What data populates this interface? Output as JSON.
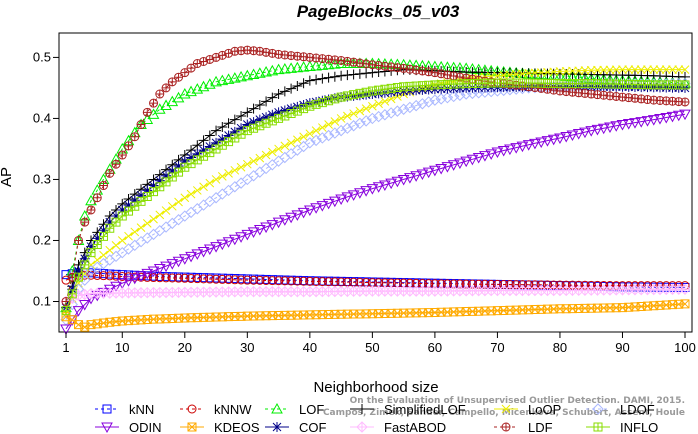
{
  "chart_data": {
    "type": "line",
    "title": "PageBlocks_05_v03",
    "xlabel": "Neighborhood size",
    "ylabel": "AP",
    "xlim": [
      1,
      100
    ],
    "ylim": [
      0.05,
      0.54
    ],
    "xticks": [
      1,
      10,
      20,
      30,
      40,
      50,
      60,
      70,
      80,
      90,
      100
    ],
    "yticks": [
      0.1,
      0.2,
      0.3,
      0.4,
      0.5
    ],
    "ytick_labels": [
      "0.1",
      "0.2",
      "0.3",
      "0.4",
      "0.5"
    ],
    "grid": false,
    "legend_position": "bottom",
    "series": [
      {
        "name": "kNN",
        "color": "#0000ff",
        "marker": "square",
        "dash": "dashed",
        "points": [
          [
            1,
            0.144
          ],
          [
            3,
            0.147
          ],
          [
            5,
            0.147
          ],
          [
            8,
            0.145
          ],
          [
            12,
            0.143
          ],
          [
            16,
            0.141
          ],
          [
            20,
            0.14
          ],
          [
            30,
            0.137
          ],
          [
            40,
            0.134
          ],
          [
            50,
            0.132
          ],
          [
            60,
            0.13
          ],
          [
            70,
            0.128
          ],
          [
            80,
            0.126
          ],
          [
            90,
            0.124
          ],
          [
            100,
            0.123
          ]
        ]
      },
      {
        "name": "kNNW",
        "color": "#cc0000",
        "marker": "circle",
        "dash": "dashed",
        "points": [
          [
            1,
            0.135
          ],
          [
            3,
            0.143
          ],
          [
            5,
            0.143
          ],
          [
            8,
            0.142
          ],
          [
            12,
            0.14
          ],
          [
            16,
            0.139
          ],
          [
            20,
            0.138
          ],
          [
            30,
            0.135
          ],
          [
            40,
            0.133
          ],
          [
            50,
            0.131
          ],
          [
            60,
            0.129
          ],
          [
            70,
            0.128
          ],
          [
            80,
            0.127
          ],
          [
            90,
            0.126
          ],
          [
            100,
            0.126
          ]
        ]
      },
      {
        "name": "LOF",
        "color": "#00ee00",
        "marker": "triangle",
        "dash": "dashed",
        "points": [
          [
            1,
            0.09
          ],
          [
            2,
            0.15
          ],
          [
            3,
            0.2
          ],
          [
            4,
            0.24
          ],
          [
            5,
            0.265
          ],
          [
            7,
            0.3
          ],
          [
            10,
            0.35
          ],
          [
            13,
            0.39
          ],
          [
            16,
            0.415
          ],
          [
            20,
            0.44
          ],
          [
            25,
            0.46
          ],
          [
            30,
            0.47
          ],
          [
            35,
            0.48
          ],
          [
            40,
            0.485
          ],
          [
            45,
            0.49
          ],
          [
            50,
            0.49
          ],
          [
            55,
            0.488
          ],
          [
            60,
            0.485
          ],
          [
            65,
            0.482
          ],
          [
            70,
            0.477
          ],
          [
            75,
            0.473
          ],
          [
            80,
            0.47
          ],
          [
            85,
            0.465
          ],
          [
            90,
            0.462
          ],
          [
            95,
            0.46
          ],
          [
            100,
            0.458
          ]
        ]
      },
      {
        "name": "SimplifiedLOF",
        "color": "#000000",
        "marker": "plus",
        "dash": "solid",
        "points": [
          [
            1,
            0.09
          ],
          [
            3,
            0.16
          ],
          [
            5,
            0.2
          ],
          [
            8,
            0.24
          ],
          [
            10,
            0.26
          ],
          [
            15,
            0.3
          ],
          [
            20,
            0.34
          ],
          [
            25,
            0.38
          ],
          [
            30,
            0.41
          ],
          [
            35,
            0.44
          ],
          [
            40,
            0.462
          ],
          [
            45,
            0.47
          ],
          [
            50,
            0.475
          ],
          [
            55,
            0.48
          ],
          [
            60,
            0.478
          ],
          [
            65,
            0.476
          ],
          [
            70,
            0.475
          ],
          [
            75,
            0.474
          ],
          [
            80,
            0.473
          ],
          [
            85,
            0.472
          ],
          [
            90,
            0.471
          ],
          [
            95,
            0.47
          ],
          [
            100,
            0.468
          ]
        ]
      },
      {
        "name": "LoOP",
        "color": "#eeee00",
        "marker": "x",
        "dash": "solid",
        "points": [
          [
            1,
            0.08
          ],
          [
            3,
            0.13
          ],
          [
            5,
            0.16
          ],
          [
            10,
            0.2
          ],
          [
            15,
            0.235
          ],
          [
            20,
            0.27
          ],
          [
            25,
            0.3
          ],
          [
            30,
            0.325
          ],
          [
            35,
            0.35
          ],
          [
            40,
            0.375
          ],
          [
            45,
            0.4
          ],
          [
            50,
            0.42
          ],
          [
            55,
            0.44
          ],
          [
            60,
            0.455
          ],
          [
            65,
            0.465
          ],
          [
            70,
            0.47
          ],
          [
            75,
            0.474
          ],
          [
            80,
            0.477
          ],
          [
            85,
            0.479
          ],
          [
            90,
            0.48
          ],
          [
            95,
            0.48
          ],
          [
            100,
            0.48
          ]
        ]
      },
      {
        "name": "LDOF",
        "color": "#aab8ff",
        "marker": "diamond",
        "dash": "dashed",
        "points": [
          [
            1,
            0.07
          ],
          [
            3,
            0.12
          ],
          [
            5,
            0.15
          ],
          [
            10,
            0.18
          ],
          [
            15,
            0.21
          ],
          [
            20,
            0.24
          ],
          [
            25,
            0.27
          ],
          [
            30,
            0.3
          ],
          [
            35,
            0.33
          ],
          [
            40,
            0.36
          ],
          [
            45,
            0.38
          ],
          [
            50,
            0.4
          ],
          [
            55,
            0.415
          ],
          [
            60,
            0.43
          ],
          [
            65,
            0.44
          ],
          [
            70,
            0.445
          ],
          [
            75,
            0.45
          ],
          [
            80,
            0.452
          ],
          [
            85,
            0.455
          ],
          [
            90,
            0.455
          ],
          [
            95,
            0.456
          ],
          [
            100,
            0.457
          ]
        ]
      },
      {
        "name": "ODIN",
        "color": "#8800dd",
        "marker": "triangle-down",
        "dash": "solid",
        "points": [
          [
            1,
            0.055
          ],
          [
            2,
            0.07
          ],
          [
            3,
            0.085
          ],
          [
            5,
            0.105
          ],
          [
            8,
            0.12
          ],
          [
            10,
            0.13
          ],
          [
            15,
            0.15
          ],
          [
            20,
            0.17
          ],
          [
            25,
            0.19
          ],
          [
            30,
            0.21
          ],
          [
            35,
            0.23
          ],
          [
            40,
            0.25
          ],
          [
            45,
            0.268
          ],
          [
            50,
            0.285
          ],
          [
            55,
            0.3
          ],
          [
            60,
            0.315
          ],
          [
            65,
            0.33
          ],
          [
            70,
            0.345
          ],
          [
            75,
            0.357
          ],
          [
            80,
            0.368
          ],
          [
            85,
            0.38
          ],
          [
            90,
            0.39
          ],
          [
            95,
            0.398
          ],
          [
            100,
            0.407
          ]
        ]
      },
      {
        "name": "KDEOS",
        "color": "#ffaa00",
        "marker": "square-x",
        "dash": "solid",
        "points": [
          [
            1,
            0.075
          ],
          [
            2,
            0.07
          ],
          [
            3,
            0.062
          ],
          [
            4,
            0.058
          ],
          [
            5,
            0.062
          ],
          [
            8,
            0.066
          ],
          [
            10,
            0.068
          ],
          [
            15,
            0.071
          ],
          [
            20,
            0.073
          ],
          [
            30,
            0.076
          ],
          [
            40,
            0.078
          ],
          [
            50,
            0.08
          ],
          [
            60,
            0.082
          ],
          [
            70,
            0.085
          ],
          [
            80,
            0.088
          ],
          [
            90,
            0.09
          ],
          [
            100,
            0.096
          ]
        ]
      },
      {
        "name": "COF",
        "color": "#000088",
        "marker": "star",
        "dash": "solid",
        "points": [
          [
            1,
            0.09
          ],
          [
            3,
            0.15
          ],
          [
            5,
            0.19
          ],
          [
            8,
            0.23
          ],
          [
            10,
            0.25
          ],
          [
            15,
            0.29
          ],
          [
            20,
            0.33
          ],
          [
            25,
            0.36
          ],
          [
            30,
            0.39
          ],
          [
            35,
            0.41
          ],
          [
            40,
            0.425
          ],
          [
            45,
            0.435
          ],
          [
            50,
            0.44
          ],
          [
            55,
            0.445
          ],
          [
            60,
            0.448
          ],
          [
            65,
            0.45
          ],
          [
            70,
            0.451
          ],
          [
            75,
            0.452
          ],
          [
            80,
            0.452
          ],
          [
            85,
            0.452
          ],
          [
            90,
            0.452
          ],
          [
            95,
            0.451
          ],
          [
            100,
            0.45
          ]
        ]
      },
      {
        "name": "FastABOD",
        "color": "#ffbbff",
        "marker": "diamond-plus",
        "dash": "solid",
        "points": [
          [
            1,
            0.1
          ],
          [
            3,
            0.11
          ],
          [
            5,
            0.113
          ],
          [
            10,
            0.114
          ],
          [
            20,
            0.115
          ],
          [
            30,
            0.116
          ],
          [
            40,
            0.116
          ],
          [
            50,
            0.117
          ],
          [
            60,
            0.117
          ],
          [
            70,
            0.118
          ],
          [
            80,
            0.118
          ],
          [
            90,
            0.119
          ],
          [
            100,
            0.12
          ]
        ]
      },
      {
        "name": "LDF",
        "color": "#aa2222",
        "marker": "circle-plus",
        "dash": "dashed",
        "points": [
          [
            1,
            0.1
          ],
          [
            2,
            0.14
          ],
          [
            3,
            0.2
          ],
          [
            4,
            0.23
          ],
          [
            5,
            0.25
          ],
          [
            6,
            0.27
          ],
          [
            8,
            0.31
          ],
          [
            10,
            0.34
          ],
          [
            12,
            0.37
          ],
          [
            14,
            0.41
          ],
          [
            16,
            0.44
          ],
          [
            18,
            0.46
          ],
          [
            20,
            0.475
          ],
          [
            22,
            0.49
          ],
          [
            25,
            0.5
          ],
          [
            28,
            0.51
          ],
          [
            30,
            0.512
          ],
          [
            32,
            0.51
          ],
          [
            35,
            0.505
          ],
          [
            40,
            0.5
          ],
          [
            45,
            0.495
          ],
          [
            50,
            0.488
          ],
          [
            55,
            0.482
          ],
          [
            60,
            0.475
          ],
          [
            65,
            0.466
          ],
          [
            70,
            0.458
          ],
          [
            75,
            0.452
          ],
          [
            80,
            0.445
          ],
          [
            85,
            0.44
          ],
          [
            90,
            0.435
          ],
          [
            95,
            0.43
          ],
          [
            100,
            0.427
          ]
        ]
      },
      {
        "name": "INFLO",
        "color": "#88dd00",
        "marker": "square-cross",
        "dash": "solid",
        "points": [
          [
            1,
            0.085
          ],
          [
            3,
            0.14
          ],
          [
            5,
            0.18
          ],
          [
            8,
            0.22
          ],
          [
            10,
            0.24
          ],
          [
            15,
            0.28
          ],
          [
            20,
            0.32
          ],
          [
            25,
            0.35
          ],
          [
            30,
            0.38
          ],
          [
            35,
            0.4
          ],
          [
            40,
            0.42
          ],
          [
            45,
            0.435
          ],
          [
            50,
            0.445
          ],
          [
            55,
            0.452
          ],
          [
            60,
            0.455
          ],
          [
            65,
            0.457
          ],
          [
            70,
            0.458
          ],
          [
            75,
            0.458
          ],
          [
            80,
            0.457
          ],
          [
            85,
            0.457
          ],
          [
            90,
            0.456
          ],
          [
            95,
            0.455
          ],
          [
            100,
            0.455
          ]
        ]
      }
    ],
    "legend_layout": [
      [
        "kNN",
        "kNNW",
        "LOF",
        "SimplifiedLOF",
        "LoOP",
        "LDOF"
      ],
      [
        "ODIN",
        "KDEOS",
        "COF",
        "FastABOD",
        "LDF",
        "INFLO"
      ]
    ],
    "watermark": [
      "Campos, Zimek, Sander, Campello, Micenkova, Schubert, Assent, Houle",
      "On the Evaluation of Unsupervised Outlier Detection. DAMI, 2015."
    ]
  }
}
